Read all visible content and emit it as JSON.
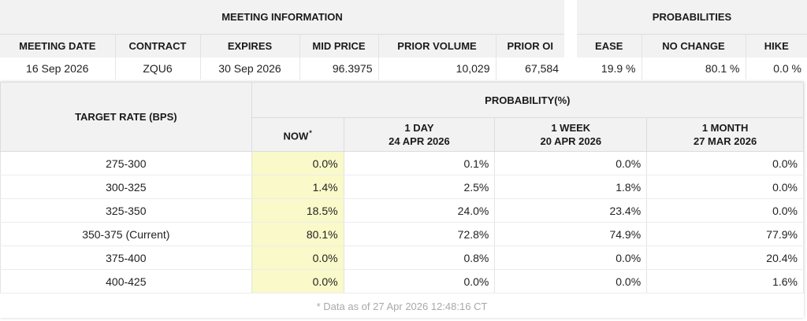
{
  "meeting": {
    "group_title": "MEETING INFORMATION",
    "headers": [
      "MEETING DATE",
      "CONTRACT",
      "EXPIRES",
      "MID PRICE",
      "PRIOR VOLUME",
      "PRIOR OI"
    ],
    "row": {
      "meeting_date": "16 Sep 2026",
      "contract": "ZQU6",
      "expires": "30 Sep 2026",
      "mid_price": "96.3975",
      "prior_volume": "10,029",
      "prior_oi": "67,584"
    }
  },
  "probabilities": {
    "group_title": "PROBABILITIES",
    "headers": [
      "EASE",
      "NO CHANGE",
      "HIKE"
    ],
    "row": {
      "ease": "19.9 %",
      "no_change": "80.1 %",
      "hike": "0.0 %"
    }
  },
  "target": {
    "rate_header": "TARGET RATE (BPS)",
    "prob_header": "PROBABILITY(%)",
    "now_label": "NOW",
    "now_mark": "*",
    "col_1day": "1 DAY",
    "date_1day": "24 APR 2026",
    "col_1week": "1 WEEK",
    "date_1week": "20 APR 2026",
    "col_1month": "1 MONTH",
    "date_1month": "27 MAR 2026",
    "rows": [
      {
        "rate": "275-300",
        "now": "0.0%",
        "day": "0.1%",
        "week": "0.0%",
        "month": "0.0%"
      },
      {
        "rate": "300-325",
        "now": "1.4%",
        "day": "2.5%",
        "week": "1.8%",
        "month": "0.0%"
      },
      {
        "rate": "325-350",
        "now": "18.5%",
        "day": "24.0%",
        "week": "23.4%",
        "month": "0.0%"
      },
      {
        "rate": "350-375 (Current)",
        "now": "80.1%",
        "day": "72.8%",
        "week": "74.9%",
        "month": "77.9%"
      },
      {
        "rate": "375-400",
        "now": "0.0%",
        "day": "0.8%",
        "week": "0.0%",
        "month": "20.4%"
      },
      {
        "rate": "400-425",
        "now": "0.0%",
        "day": "0.0%",
        "week": "0.0%",
        "month": "1.6%"
      }
    ]
  },
  "footer_note": "* Data as of 27 Apr 2026 12:48:16 CT",
  "colors": {
    "now_highlight": "#f9f9c9",
    "header_bg": "#f2f2f2",
    "footer_text": "#a9a9a9"
  }
}
